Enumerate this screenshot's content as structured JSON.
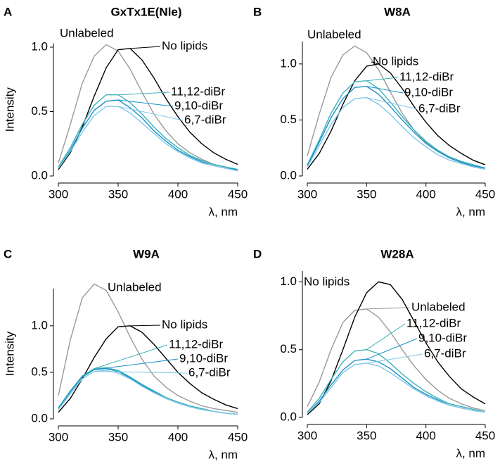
{
  "chart_data": [
    {
      "type": "line",
      "panel": "A",
      "title": "GxTx1E(Nle)",
      "ylabel": "Intensity",
      "xlabel": "λ, nm",
      "x": [
        300,
        310,
        320,
        330,
        340,
        350,
        360,
        370,
        380,
        390,
        400,
        410,
        420,
        430,
        440,
        450
      ],
      "xlim": [
        300,
        450
      ],
      "xticks": [
        300,
        350,
        400,
        450
      ],
      "ylim": [
        0,
        1.03
      ],
      "yticks": [
        {
          "value": 0,
          "label": "0.0"
        },
        {
          "value": 0.5,
          "label": "0.5"
        },
        {
          "value": 1,
          "label": "1.0"
        }
      ],
      "series": [
        {
          "name": "Unlabeled",
          "color": "#999999",
          "values": [
            0.1,
            0.4,
            0.72,
            0.93,
            1.02,
            0.97,
            0.83,
            0.65,
            0.48,
            0.35,
            0.25,
            0.18,
            0.13,
            0.09,
            0.07,
            0.05
          ]
        },
        {
          "name": "No lipids",
          "color": "#000000",
          "values": [
            0.05,
            0.18,
            0.38,
            0.62,
            0.84,
            0.98,
            0.99,
            0.9,
            0.76,
            0.6,
            0.46,
            0.34,
            0.25,
            0.18,
            0.13,
            0.09
          ]
        },
        {
          "name": "11,12-diBr",
          "color": "#3bb3b8",
          "values": [
            0.07,
            0.22,
            0.4,
            0.55,
            0.63,
            0.63,
            0.57,
            0.48,
            0.38,
            0.29,
            0.22,
            0.16,
            0.12,
            0.09,
            0.07,
            0.05
          ]
        },
        {
          "name": "9,10-diBr",
          "color": "#1a8fc8",
          "values": [
            0.06,
            0.2,
            0.37,
            0.51,
            0.58,
            0.59,
            0.53,
            0.45,
            0.35,
            0.27,
            0.2,
            0.15,
            0.11,
            0.08,
            0.06,
            0.05
          ]
        },
        {
          "name": "6,7-diBr",
          "color": "#7fc8e8",
          "values": [
            0.06,
            0.19,
            0.34,
            0.47,
            0.54,
            0.54,
            0.49,
            0.41,
            0.33,
            0.25,
            0.19,
            0.14,
            0.1,
            0.08,
            0.06,
            0.04
          ]
        }
      ]
    },
    {
      "type": "line",
      "panel": "B",
      "title": "W8A",
      "xlabel": "λ, nm",
      "x": [
        300,
        310,
        320,
        330,
        340,
        350,
        360,
        370,
        380,
        390,
        400,
        410,
        420,
        430,
        440,
        450
      ],
      "xlim": [
        300,
        450
      ],
      "xticks": [
        300,
        350,
        400,
        450
      ],
      "ylim": [
        0,
        1.2
      ],
      "yticks": [
        {
          "value": 0,
          "label": "0.0"
        },
        {
          "value": 0.5,
          "label": "0.5"
        },
        {
          "value": 1,
          "label": "1.0"
        }
      ],
      "series": [
        {
          "name": "Unlabeled",
          "color": "#999999",
          "values": [
            0.18,
            0.55,
            0.88,
            1.08,
            1.16,
            1.1,
            0.95,
            0.75,
            0.56,
            0.41,
            0.3,
            0.22,
            0.16,
            0.12,
            0.09,
            0.07
          ]
        },
        {
          "name": "No lipids",
          "color": "#000000",
          "values": [
            0.06,
            0.2,
            0.4,
            0.64,
            0.85,
            0.98,
            1.0,
            0.92,
            0.78,
            0.62,
            0.48,
            0.36,
            0.27,
            0.2,
            0.14,
            0.1
          ]
        },
        {
          "name": "11,12-diBr",
          "color": "#3bb3b8",
          "values": [
            0.1,
            0.32,
            0.56,
            0.74,
            0.84,
            0.85,
            0.78,
            0.66,
            0.53,
            0.41,
            0.31,
            0.23,
            0.17,
            0.13,
            0.1,
            0.07
          ]
        },
        {
          "name": "9,10-diBr",
          "color": "#1a8fc8",
          "values": [
            0.09,
            0.3,
            0.52,
            0.69,
            0.79,
            0.8,
            0.73,
            0.62,
            0.5,
            0.39,
            0.29,
            0.22,
            0.16,
            0.12,
            0.09,
            0.07
          ]
        },
        {
          "name": "6,7-diBr",
          "color": "#7fc8e8",
          "values": [
            0.08,
            0.27,
            0.46,
            0.61,
            0.69,
            0.7,
            0.64,
            0.55,
            0.44,
            0.34,
            0.26,
            0.19,
            0.14,
            0.11,
            0.08,
            0.06
          ]
        }
      ]
    },
    {
      "type": "line",
      "panel": "C",
      "title": "W9A",
      "ylabel": "Intensity",
      "xlabel": "λ, nm",
      "x": [
        300,
        310,
        320,
        330,
        340,
        350,
        360,
        370,
        380,
        390,
        400,
        410,
        420,
        430,
        440,
        450
      ],
      "xlim": [
        300,
        450
      ],
      "xticks": [
        300,
        350,
        400,
        450
      ],
      "ylim": [
        0,
        1.4
      ],
      "yticks": [
        {
          "value": 0,
          "label": "0.0"
        },
        {
          "value": 0.5,
          "label": "0.5"
        },
        {
          "value": 1,
          "label": "1.0"
        }
      ],
      "series": [
        {
          "name": "Unlabeled",
          "color": "#999999",
          "values": [
            0.25,
            0.85,
            1.3,
            1.45,
            1.38,
            1.15,
            0.88,
            0.64,
            0.46,
            0.34,
            0.25,
            0.19,
            0.14,
            0.11,
            0.09,
            0.07
          ]
        },
        {
          "name": "No lipids",
          "color": "#000000",
          "values": [
            0.07,
            0.22,
            0.43,
            0.66,
            0.86,
            0.99,
            1.0,
            0.93,
            0.8,
            0.65,
            0.5,
            0.38,
            0.28,
            0.21,
            0.15,
            0.11
          ]
        },
        {
          "name": "11,12-diBr",
          "color": "#3bb3b8",
          "values": [
            0.12,
            0.3,
            0.46,
            0.54,
            0.55,
            0.52,
            0.45,
            0.37,
            0.3,
            0.23,
            0.18,
            0.14,
            0.11,
            0.08,
            0.06,
            0.05
          ]
        },
        {
          "name": "9,10-diBr",
          "color": "#1a8fc8",
          "values": [
            0.11,
            0.29,
            0.45,
            0.53,
            0.54,
            0.51,
            0.44,
            0.36,
            0.29,
            0.22,
            0.17,
            0.13,
            0.1,
            0.08,
            0.06,
            0.05
          ]
        },
        {
          "name": "6,7-diBr",
          "color": "#7fc8e8",
          "values": [
            0.1,
            0.27,
            0.43,
            0.51,
            0.52,
            0.49,
            0.43,
            0.35,
            0.28,
            0.22,
            0.17,
            0.13,
            0.1,
            0.08,
            0.06,
            0.05
          ]
        }
      ]
    },
    {
      "type": "line",
      "panel": "D",
      "title": "W28A",
      "xlabel": "λ, nm",
      "x": [
        300,
        310,
        320,
        330,
        340,
        350,
        360,
        370,
        380,
        390,
        400,
        410,
        420,
        430,
        440,
        450
      ],
      "xlim": [
        300,
        450
      ],
      "xticks": [
        300,
        350,
        400,
        450
      ],
      "ylim": [
        0,
        1.08
      ],
      "yticks": [
        {
          "value": 0,
          "label": "0.0"
        },
        {
          "value": 0.5,
          "label": "0.5"
        },
        {
          "value": 1,
          "label": "1.0"
        }
      ],
      "series": [
        {
          "name": "Unlabeled",
          "color": "#999999",
          "values": [
            0.08,
            0.26,
            0.5,
            0.7,
            0.79,
            0.8,
            0.74,
            0.63,
            0.5,
            0.38,
            0.28,
            0.2,
            0.14,
            0.1,
            0.07,
            0.05
          ]
        },
        {
          "name": "No lipids",
          "color": "#000000",
          "values": [
            0.02,
            0.1,
            0.27,
            0.5,
            0.74,
            0.92,
            1.0,
            0.98,
            0.87,
            0.71,
            0.55,
            0.41,
            0.3,
            0.21,
            0.15,
            0.1
          ]
        },
        {
          "name": "11,12-diBr",
          "color": "#3bb3b8",
          "values": [
            0.04,
            0.14,
            0.28,
            0.41,
            0.49,
            0.5,
            0.47,
            0.4,
            0.32,
            0.25,
            0.19,
            0.14,
            0.1,
            0.08,
            0.06,
            0.04
          ]
        },
        {
          "name": "9,10-diBr",
          "color": "#1a8fc8",
          "values": [
            0.03,
            0.12,
            0.24,
            0.35,
            0.42,
            0.43,
            0.41,
            0.36,
            0.29,
            0.22,
            0.17,
            0.13,
            0.09,
            0.07,
            0.05,
            0.04
          ]
        },
        {
          "name": "6,7-diBr",
          "color": "#7fc8e8",
          "values": [
            0.03,
            0.11,
            0.22,
            0.33,
            0.39,
            0.4,
            0.38,
            0.33,
            0.27,
            0.21,
            0.16,
            0.12,
            0.09,
            0.07,
            0.05,
            0.04
          ]
        }
      ]
    }
  ]
}
